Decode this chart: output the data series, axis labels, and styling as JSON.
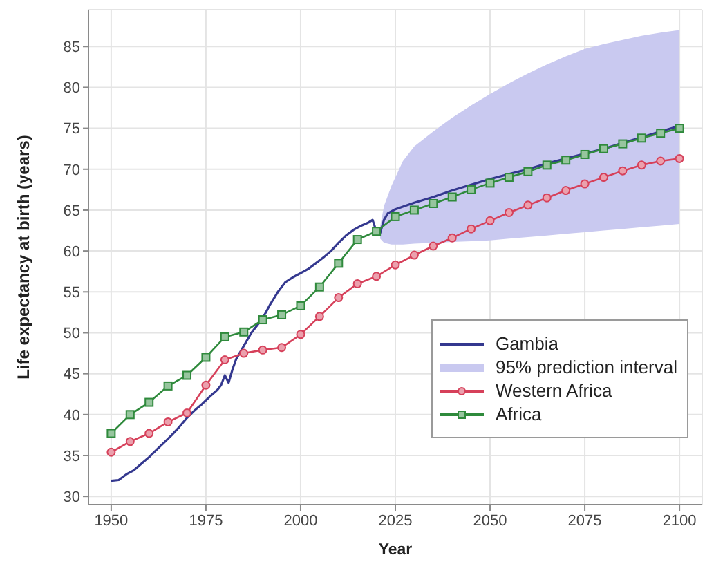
{
  "chart_data": {
    "type": "line",
    "xlabel": "Year",
    "ylabel": "Life expectancy at birth (years)",
    "xlim": [
      1944,
      2106
    ],
    "xticks": [
      1950,
      1975,
      2000,
      2025,
      2050,
      2075,
      2100
    ],
    "ylim": [
      29,
      89.5
    ],
    "yticks": [
      30,
      35,
      40,
      45,
      50,
      55,
      60,
      65,
      70,
      75,
      80,
      85
    ],
    "grid": true,
    "legend": "bottom right",
    "x": [
      1950,
      1955,
      1960,
      1965,
      1970,
      1975,
      1980,
      1985,
      1990,
      1995,
      2000,
      2005,
      2010,
      2015,
      2020,
      2025,
      2030,
      2035,
      2040,
      2045,
      2050,
      2055,
      2060,
      2065,
      2070,
      2075,
      2080,
      2085,
      2090,
      2095,
      2100
    ],
    "series": [
      {
        "name": "Gambia",
        "color": "#34388f",
        "marker": "none",
        "x": [
          1950,
          1952,
          1954,
          1956,
          1958,
          1960,
          1962,
          1964,
          1966,
          1968,
          1970,
          1972,
          1974,
          1976,
          1978,
          1979,
          1980,
          1981,
          1982,
          1983,
          1985,
          1987,
          1990,
          1992,
          1994,
          1996,
          1998,
          2000,
          2002,
          2004,
          2006,
          2008,
          2010,
          2012,
          2014,
          2016,
          2018,
          2019,
          2020,
          2021,
          2022,
          2023,
          2025,
          2030,
          2035,
          2040,
          2045,
          2050,
          2055,
          2060,
          2065,
          2070,
          2075,
          2080,
          2085,
          2090,
          2095,
          2100
        ],
        "values": [
          31.9,
          32.0,
          32.7,
          33.2,
          34.0,
          34.8,
          35.7,
          36.6,
          37.5,
          38.5,
          39.6,
          40.5,
          41.3,
          42.2,
          43.0,
          43.6,
          44.8,
          43.9,
          45.5,
          46.8,
          48.4,
          50.0,
          51.8,
          53.5,
          55.0,
          56.2,
          56.8,
          57.3,
          57.8,
          58.5,
          59.2,
          60.0,
          61.0,
          61.9,
          62.6,
          63.1,
          63.5,
          63.8,
          62.4,
          62.2,
          63.8,
          64.6,
          65.1,
          65.9,
          66.6,
          67.4,
          68.1,
          68.8,
          69.4,
          70.0,
          70.7,
          71.3,
          71.9,
          72.5,
          73.2,
          73.9,
          74.6,
          75.3
        ]
      },
      {
        "name": "95% prediction interval",
        "type": "area",
        "color": "#c9c9f0",
        "x": [
          2021,
          2022,
          2024,
          2027,
          2030,
          2035,
          2040,
          2045,
          2050,
          2055,
          2060,
          2065,
          2070,
          2075,
          2080,
          2085,
          2090,
          2095,
          2100
        ],
        "values": [
          null,
          null,
          null,
          null,
          null,
          null,
          null,
          null,
          null,
          null,
          null,
          null,
          null,
          null,
          null,
          null,
          null,
          null,
          null
        ],
        "lower": [
          61.5,
          61.0,
          60.8,
          60.8,
          60.9,
          61.0,
          61.1,
          61.2,
          61.3,
          61.5,
          61.7,
          61.9,
          62.1,
          62.3,
          62.5,
          62.7,
          62.9,
          63.1,
          63.3
        ],
        "upper": [
          63.0,
          65.5,
          68.0,
          71.0,
          72.8,
          74.6,
          76.3,
          77.8,
          79.2,
          80.5,
          81.7,
          82.8,
          83.8,
          84.7,
          85.3,
          85.8,
          86.3,
          86.7,
          87.0
        ]
      },
      {
        "name": "Western Africa",
        "color": "#d6405a",
        "marker": "circle",
        "values": [
          35.4,
          36.7,
          37.7,
          39.1,
          40.2,
          43.6,
          46.7,
          47.5,
          47.9,
          48.2,
          49.8,
          52.0,
          54.3,
          56.0,
          56.9,
          58.3,
          59.5,
          60.6,
          61.6,
          62.7,
          63.7,
          64.7,
          65.6,
          66.5,
          67.4,
          68.2,
          69.0,
          69.8,
          70.5,
          71.0,
          71.3
        ]
      },
      {
        "name": "Africa",
        "color": "#2f8a3c",
        "marker": "square",
        "values": [
          37.7,
          40.0,
          41.5,
          43.5,
          44.8,
          47.0,
          49.5,
          50.1,
          51.6,
          52.2,
          53.3,
          55.6,
          58.5,
          61.4,
          62.4,
          64.2,
          65.0,
          65.8,
          66.6,
          67.5,
          68.3,
          69.0,
          69.7,
          70.5,
          71.1,
          71.8,
          72.5,
          73.1,
          73.8,
          74.4,
          75.0
        ]
      }
    ]
  }
}
